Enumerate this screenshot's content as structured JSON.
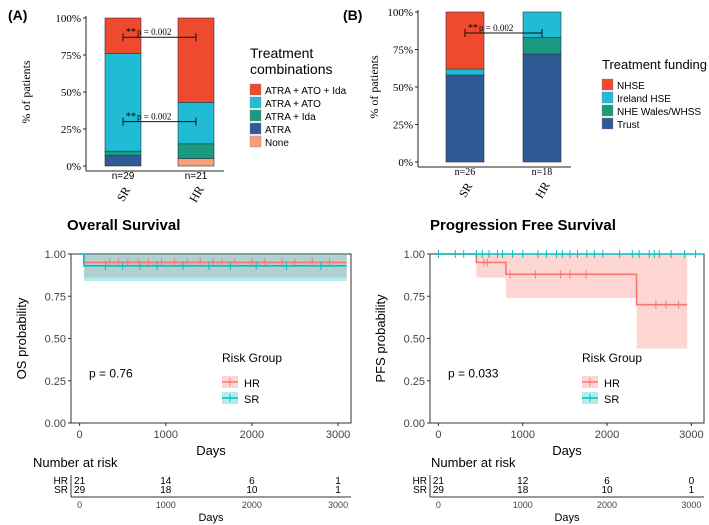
{
  "chart_data": [
    {
      "panel": "A",
      "type": "bar",
      "stacked": true,
      "categories": [
        "SR",
        "HR"
      ],
      "n_labels": [
        "n=29",
        "n=21"
      ],
      "ylabel": "% of patients",
      "yticks": [
        "0%",
        "25%",
        "50%",
        "75%",
        "100%"
      ],
      "ylim": [
        0,
        100
      ],
      "legend_title": [
        "Treatment",
        "combinations"
      ],
      "series": [
        {
          "name": "None",
          "color": "#f5a07a",
          "values": [
            0,
            5
          ]
        },
        {
          "name": "ATRA",
          "color": "#2e5b95",
          "values": [
            7,
            0
          ]
        },
        {
          "name": "ATRA + Ida",
          "color": "#1a9a80",
          "values": [
            3,
            10
          ]
        },
        {
          "name": "ATRA + ATO",
          "color": "#20bcd6",
          "values": [
            66,
            28
          ]
        },
        {
          "name": "ATRA + ATO + Ida",
          "color": "#f04a2e",
          "values": [
            24,
            57
          ]
        }
      ],
      "legend_order": [
        "ATRA + ATO + Ida",
        "ATRA + ATO",
        "ATRA + Ida",
        "ATRA",
        "None"
      ],
      "annotations": [
        {
          "stars": "**",
          "text": "p = 0.002",
          "at": 87
        },
        {
          "stars": "**",
          "text": "p = 0.002",
          "at": 30
        }
      ]
    },
    {
      "panel": "B",
      "type": "bar",
      "stacked": true,
      "categories": [
        "SR",
        "HR"
      ],
      "n_labels": [
        "n=26",
        "n=18"
      ],
      "ylabel": "% of patients",
      "yticks": [
        "0%",
        "25%",
        "50%",
        "75%",
        "100%"
      ],
      "ylim": [
        0,
        100
      ],
      "legend_title": [
        "Treatment funding"
      ],
      "series": [
        {
          "name": "Trust",
          "color": "#2e5b95",
          "values": [
            58,
            72
          ]
        },
        {
          "name": "NHE Wales/WHSS",
          "color": "#1a9a80",
          "values": [
            0,
            11
          ]
        },
        {
          "name": "Ireland HSE",
          "color": "#20bcd6",
          "values": [
            4,
            17
          ]
        },
        {
          "name": "NHSE",
          "color": "#f04a2e",
          "values": [
            38,
            0
          ]
        }
      ],
      "legend_order": [
        "NHSE",
        "Ireland HSE",
        "NHE Wales/WHSS",
        "Trust"
      ],
      "annotations": [
        {
          "stars": "**",
          "text": "p = 0.002",
          "at": 86
        }
      ]
    },
    {
      "panel": "OS",
      "type": "line",
      "title": "Overall Survival",
      "xlabel": "Days",
      "ylabel": "OS probability",
      "xlim": [
        -100,
        3150
      ],
      "ylim": [
        0,
        1
      ],
      "xticks": [
        "0",
        "1000",
        "2000",
        "3000"
      ],
      "yticks": [
        "0.00",
        "0.25",
        "0.50",
        "0.75",
        "1.00"
      ],
      "pvalue": "p = 0.76",
      "legend_title": "Risk Group",
      "series": [
        {
          "name": "HR",
          "color": "#f8766d",
          "x": [
            0,
            50,
            3100
          ],
          "y": [
            1.0,
            0.95,
            0.95
          ],
          "ci_lower": [
            1.0,
            0.86,
            0.86
          ],
          "ci_upper": [
            1.0,
            1.0,
            1.0
          ],
          "censor_x": [
            350,
            450,
            560,
            680,
            800,
            950,
            1100,
            1250,
            1400,
            1550,
            1650,
            1800,
            2000,
            2150,
            2350,
            2500,
            2700,
            2900
          ]
        },
        {
          "name": "SR",
          "color": "#00bfc4",
          "x": [
            0,
            50,
            3100
          ],
          "y": [
            1.0,
            0.93,
            0.93
          ],
          "ci_lower": [
            1.0,
            0.84,
            0.84
          ],
          "ci_upper": [
            1.0,
            1.0,
            1.0
          ],
          "censor_x": [
            300,
            500,
            700,
            900,
            1200,
            1500,
            1750,
            2050,
            2400,
            2800
          ]
        }
      ],
      "risk_table": {
        "title": "Number at risk",
        "rows": [
          {
            "group": "HR",
            "counts": [
              "21",
              "14",
              "6",
              "1"
            ]
          },
          {
            "group": "SR",
            "counts": [
              "29",
              "18",
              "10",
              "1"
            ]
          }
        ],
        "xticks": [
          "0",
          "1000",
          "2000",
          "3000"
        ],
        "xlabel": "Days"
      }
    },
    {
      "panel": "PFS",
      "type": "line",
      "title": "Progression Free Survival",
      "xlabel": "Days",
      "ylabel": "PFS probability",
      "xlim": [
        -100,
        3150
      ],
      "ylim": [
        0,
        1
      ],
      "xticks": [
        "0",
        "1000",
        "2000",
        "3000"
      ],
      "yticks": [
        "0.00",
        "0.25",
        "0.50",
        "0.75",
        "1.00"
      ],
      "pvalue": "p = 0.033",
      "legend_title": "Risk Group",
      "series": [
        {
          "name": "HR",
          "color": "#f8766d",
          "x": [
            0,
            450,
            800,
            2350,
            2950
          ],
          "y": [
            1.0,
            0.95,
            0.88,
            0.7,
            0.7
          ],
          "ci_lower": [
            1.0,
            0.86,
            0.74,
            0.44,
            0.44
          ],
          "ci_upper": [
            1.0,
            1.0,
            1.0,
            1.0,
            1.0
          ],
          "censor_x": [
            540,
            580,
            850,
            1150,
            1450,
            1560,
            1750,
            2580,
            2700,
            2850
          ]
        },
        {
          "name": "SR",
          "color": "#00bfc4",
          "x": [
            0,
            3150
          ],
          "y": [
            1.0,
            1.0
          ],
          "ci_lower": [
            1.0,
            1.0
          ],
          "ci_upper": [
            1.0,
            1.0
          ],
          "censor_x": [
            0,
            200,
            300,
            450,
            520,
            600,
            700,
            760,
            880,
            1000,
            1180,
            1280,
            1400,
            1470,
            1560,
            1650,
            1760,
            1850,
            1950,
            2150,
            2300,
            2380,
            2500,
            2560,
            2620,
            2760,
            2920,
            3050
          ]
        }
      ],
      "risk_table": {
        "title": "Number at risk",
        "rows": [
          {
            "group": "HR",
            "counts": [
              "21",
              "12",
              "6",
              "0"
            ]
          },
          {
            "group": "SR",
            "counts": [
              "29",
              "18",
              "10",
              "1"
            ]
          }
        ],
        "xticks": [
          "0",
          "1000",
          "2000",
          "3000"
        ],
        "xlabel": "Days"
      }
    }
  ]
}
